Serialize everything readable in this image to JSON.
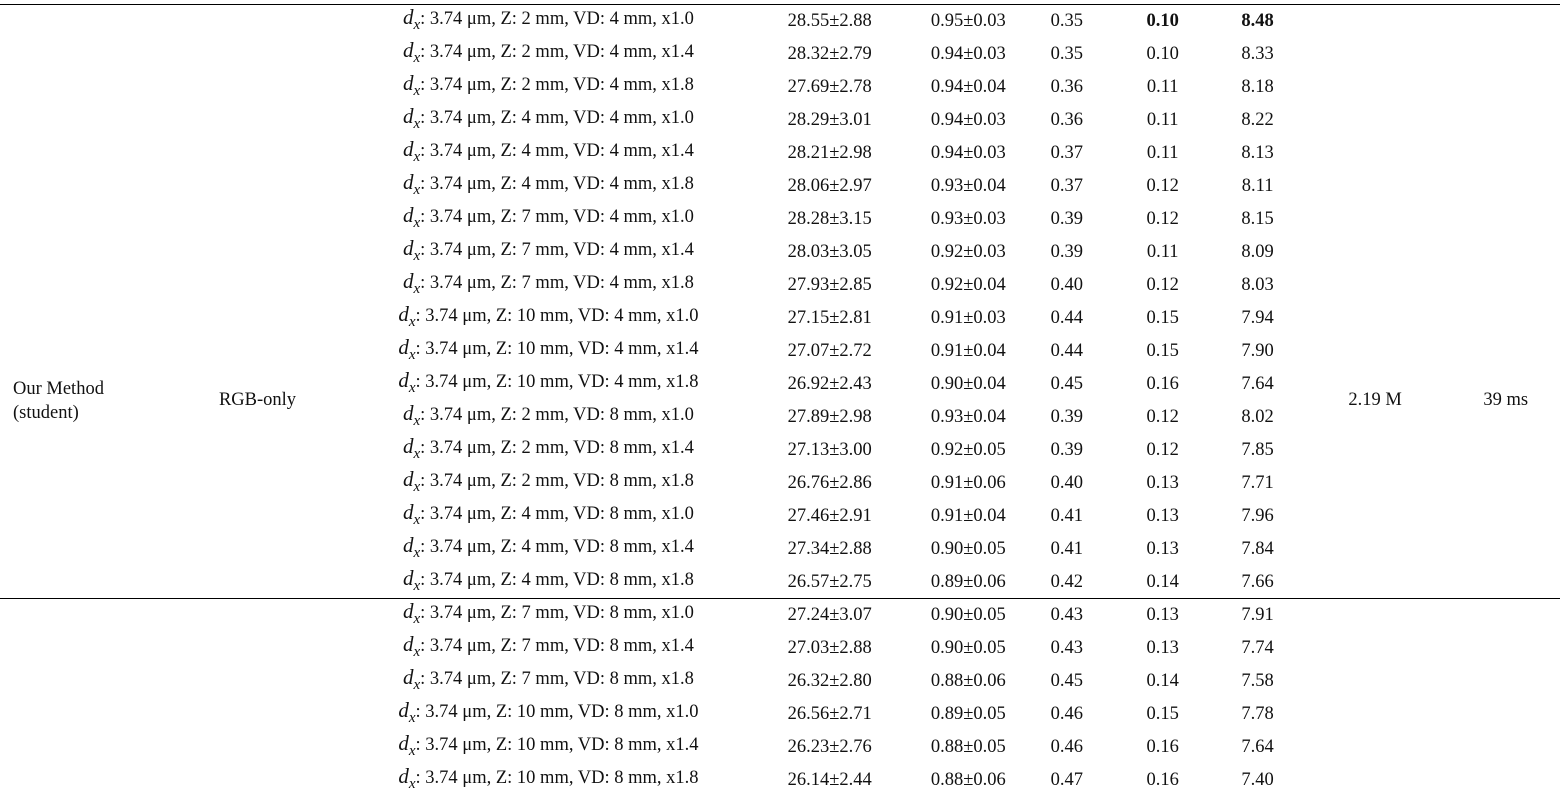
{
  "group": {
    "method": "Our Method\n(student)",
    "input": "RGB-only",
    "params": "2.19 M",
    "time": "39 ms"
  },
  "rows": [
    {
      "config": ": 3.74 μm, Z: 2 mm, VD: 4 mm, x1.0",
      "psnr": "28.55±2.88",
      "ssim": "0.95±0.03",
      "lpips": "0.35",
      "m4": "0.10",
      "m5": "8.48",
      "bold": true
    },
    {
      "config": ": 3.74 μm, Z: 2 mm, VD: 4 mm, x1.4",
      "psnr": "28.32±2.79",
      "ssim": "0.94±0.03",
      "lpips": "0.35",
      "m4": "0.10",
      "m5": "8.33"
    },
    {
      "config": ": 3.74 μm, Z: 2 mm, VD: 4 mm, x1.8",
      "psnr": "27.69±2.78",
      "ssim": "0.94±0.04",
      "lpips": "0.36",
      "m4": "0.11",
      "m5": "8.18"
    },
    {
      "config": ": 3.74 μm, Z: 4 mm, VD: 4 mm, x1.0",
      "psnr": "28.29±3.01",
      "ssim": "0.94±0.03",
      "lpips": "0.36",
      "m4": "0.11",
      "m5": "8.22"
    },
    {
      "config": ": 3.74 μm, Z: 4 mm, VD: 4 mm, x1.4",
      "psnr": "28.21±2.98",
      "ssim": "0.94±0.03",
      "lpips": "0.37",
      "m4": "0.11",
      "m5": "8.13"
    },
    {
      "config": ": 3.74 μm, Z: 4 mm, VD: 4 mm, x1.8",
      "psnr": "28.06±2.97",
      "ssim": "0.93±0.04",
      "lpips": "0.37",
      "m4": "0.12",
      "m5": "8.11"
    },
    {
      "config": ": 3.74 μm, Z: 7 mm, VD: 4 mm, x1.0",
      "psnr": "28.28±3.15",
      "ssim": "0.93±0.03",
      "lpips": "0.39",
      "m4": "0.12",
      "m5": "8.15"
    },
    {
      "config": ": 3.74 μm, Z: 7 mm, VD: 4 mm, x1.4",
      "psnr": "28.03±3.05",
      "ssim": "0.92±0.03",
      "lpips": "0.39",
      "m4": "0.11",
      "m5": "8.09"
    },
    {
      "config": ": 3.74 μm, Z: 7 mm, VD: 4 mm, x1.8",
      "psnr": "27.93±2.85",
      "ssim": "0.92±0.04",
      "lpips": "0.40",
      "m4": "0.12",
      "m5": "8.03"
    },
    {
      "config": ": 3.74 μm, Z: 10 mm, VD: 4 mm, x1.0",
      "psnr": "27.15±2.81",
      "ssim": "0.91±0.03",
      "lpips": "0.44",
      "m4": "0.15",
      "m5": "7.94"
    },
    {
      "config": ": 3.74 μm, Z: 10 mm, VD: 4 mm, x1.4",
      "psnr": "27.07±2.72",
      "ssim": "0.91±0.04",
      "lpips": "0.44",
      "m4": "0.15",
      "m5": "7.90"
    },
    {
      "config": ": 3.74 μm, Z: 10 mm, VD: 4 mm, x1.8",
      "psnr": "26.92±2.43",
      "ssim": "0.90±0.04",
      "lpips": "0.45",
      "m4": "0.16",
      "m5": "7.64"
    },
    {
      "config": ": 3.74 μm, Z: 2 mm, VD: 8 mm, x1.0",
      "psnr": "27.89±2.98",
      "ssim": "0.93±0.04",
      "lpips": "0.39",
      "m4": "0.12",
      "m5": "8.02"
    },
    {
      "config": ": 3.74 μm, Z: 2 mm, VD: 8 mm, x1.4",
      "psnr": "27.13±3.00",
      "ssim": "0.92±0.05",
      "lpips": "0.39",
      "m4": "0.12",
      "m5": "7.85"
    },
    {
      "config": ": 3.74 μm, Z: 2 mm, VD: 8 mm, x1.8",
      "psnr": "26.76±2.86",
      "ssim": "0.91±0.06",
      "lpips": "0.40",
      "m4": "0.13",
      "m5": "7.71"
    },
    {
      "config": ": 3.74 μm, Z: 4 mm, VD: 8 mm, x1.0",
      "psnr": "27.46±2.91",
      "ssim": "0.91±0.04",
      "lpips": "0.41",
      "m4": "0.13",
      "m5": "7.96"
    },
    {
      "config": ": 3.74 μm, Z: 4 mm, VD: 8 mm, x1.4",
      "psnr": "27.34±2.88",
      "ssim": "0.90±0.05",
      "lpips": "0.41",
      "m4": "0.13",
      "m5": "7.84"
    },
    {
      "config": ": 3.74 μm, Z: 4 mm, VD: 8 mm, x1.8",
      "psnr": "26.57±2.75",
      "ssim": "0.89±0.06",
      "lpips": "0.42",
      "m4": "0.14",
      "m5": "7.66"
    },
    {
      "config": ": 3.74 μm, Z: 7 mm, VD: 8 mm, x1.0",
      "psnr": "27.24±3.07",
      "ssim": "0.90±0.05",
      "lpips": "0.43",
      "m4": "0.13",
      "m5": "7.91"
    },
    {
      "config": ": 3.74 μm, Z: 7 mm, VD: 8 mm, x1.4",
      "psnr": "27.03±2.88",
      "ssim": "0.90±0.05",
      "lpips": "0.43",
      "m4": "0.13",
      "m5": "7.74"
    },
    {
      "config": ": 3.74 μm, Z: 7 mm, VD: 8 mm, x1.8",
      "psnr": "26.32±2.80",
      "ssim": "0.88±0.06",
      "lpips": "0.45",
      "m4": "0.14",
      "m5": "7.58"
    },
    {
      "config": ": 3.74 μm, Z: 10 mm, VD: 8 mm, x1.0",
      "psnr": "26.56±2.71",
      "ssim": "0.89±0.05",
      "lpips": "0.46",
      "m4": "0.15",
      "m5": "7.78"
    },
    {
      "config": ": 3.74 μm, Z: 10 mm, VD: 8 mm, x1.4",
      "psnr": "26.23±2.76",
      "ssim": "0.88±0.05",
      "lpips": "0.46",
      "m4": "0.16",
      "m5": "7.64"
    },
    {
      "config": ": 3.74 μm, Z: 10 mm, VD: 8 mm, x1.8",
      "psnr": "26.14±2.44",
      "ssim": "0.88±0.06",
      "lpips": "0.47",
      "m4": "0.16",
      "m5": "7.40"
    }
  ],
  "symbols": {
    "d": "d",
    "x": "x"
  }
}
